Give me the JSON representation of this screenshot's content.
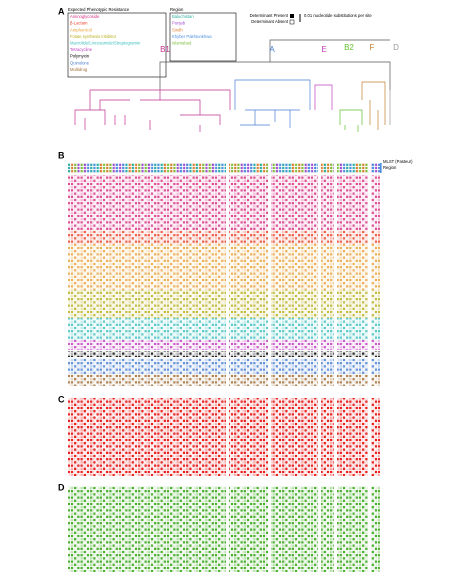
{
  "panels": {
    "a": "A",
    "b": "B",
    "c": "C",
    "d": "D"
  },
  "resistance_legend": {
    "title": "Expected Phenotypic Resistance",
    "items": [
      {
        "label": "Aminoglycoside",
        "color": "#d63384"
      },
      {
        "label": "β-Lactam",
        "color": "#e8452c"
      },
      {
        "label": "Amphenicol",
        "color": "#e8a33c"
      },
      {
        "label": "Folate synthesis inhibitor",
        "color": "#b8b020"
      },
      {
        "label": "Macrolide/Lincosamide/Streptogramin",
        "color": "#40c0c0"
      },
      {
        "label": "Tetracycline",
        "color": "#c040c0"
      },
      {
        "label": "Polymyxin",
        "color": "#000000"
      },
      {
        "label": "Quinolone",
        "color": "#4a7fd0"
      },
      {
        "label": "Multidrug",
        "color": "#a0703a"
      }
    ]
  },
  "region_legend": {
    "title": "Region",
    "items": [
      {
        "label": "Baluchistan",
        "color": "#30b0a0"
      },
      {
        "label": "Punjab",
        "color": "#a050d0"
      },
      {
        "label": "Sindh",
        "color": "#e08030"
      },
      {
        "label": "Khyber Pakhtunkhwa",
        "color": "#4a8fe0"
      },
      {
        "label": "Islamabad",
        "color": "#80c040"
      }
    ]
  },
  "determinant_legend": {
    "present": "Determinant Present",
    "absent": "Determinant Absent"
  },
  "scale_label": "0.01 nucleotide substitutions per site",
  "clades": [
    {
      "label": "B1",
      "color": "#c03090"
    },
    {
      "label": "A",
      "color": "#4a7fd0"
    },
    {
      "label": "E",
      "color": "#c040c0"
    },
    {
      "label": "B2",
      "color": "#60c030"
    },
    {
      "label": "F",
      "color": "#c08030"
    },
    {
      "label": "D",
      "color": "#999999"
    }
  ],
  "row_headers": {
    "mlst": "MLST (Pasteur)",
    "region": "Region"
  }
}
